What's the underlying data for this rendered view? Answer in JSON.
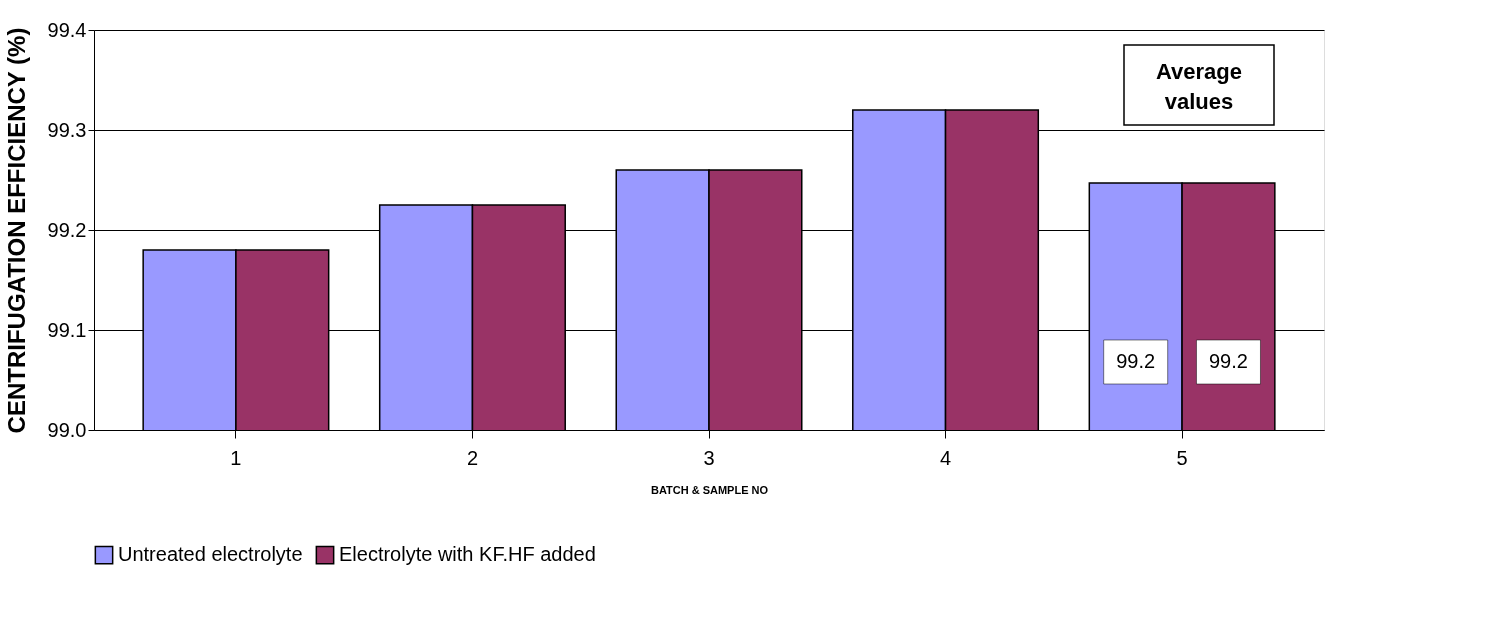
{
  "chart_data": {
    "type": "bar",
    "xlabel": "BATCH & SAMPLE NO",
    "ylabel": "CENTRIFUGATION EFFICIENCY (%)",
    "categories": [
      "1",
      "2",
      "3",
      "4",
      "5"
    ],
    "series": [
      {
        "name": "Untreated electrolyte",
        "color": "#9999ff",
        "values": [
          99.18,
          99.225,
          99.26,
          99.32,
          99.247
        ],
        "value_labels": [
          null,
          null,
          null,
          null,
          "99.2"
        ]
      },
      {
        "name": "Electrolyte with KF.HF added",
        "color": "#993366",
        "values": [
          99.18,
          99.225,
          99.26,
          99.32,
          99.247
        ],
        "value_labels": [
          null,
          null,
          null,
          null,
          "99.2"
        ]
      }
    ],
    "ylim": [
      99.0,
      99.4
    ],
    "yticks": [
      {
        "value": 99.0,
        "label": "99.0"
      },
      99.1,
      99.2,
      99.3,
      99.4
    ],
    "grid": "y",
    "legend": "bottom",
    "annotations": [
      "Average values"
    ]
  }
}
